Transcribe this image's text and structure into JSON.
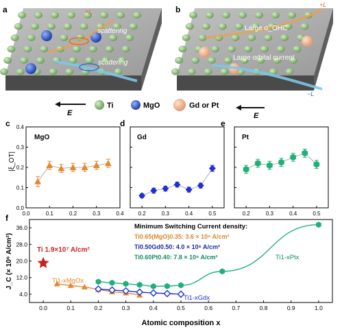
{
  "panels_top": {
    "a": {
      "letter": "a",
      "labels": [
        "scattering",
        "scattering"
      ],
      "arrow_labels": [
        "+L",
        "−L"
      ]
    },
    "b": {
      "letter": "b",
      "labels": [
        "Large σ_OHC",
        "Large orbital current"
      ],
      "arrow_labels": [
        "+L",
        "−L"
      ]
    }
  },
  "legend_top": {
    "e_label": "E",
    "items": [
      {
        "name": "Ti",
        "color": "#8fbe7e"
      },
      {
        "name": "MgO",
        "color": "#2f62c8"
      },
      {
        "name": "Gd or Pt",
        "color": "#f2b48e"
      }
    ]
  },
  "chart_data": [
    {
      "panel": "c",
      "type": "line",
      "inset_label": "MgO",
      "ylabel": "|ξ_OT|",
      "color": "#e8862a",
      "marker": "triangle",
      "xlim": [
        0,
        0.4
      ],
      "ylim": [
        0,
        0.4
      ],
      "xticks": [
        "0.0",
        "0.1",
        "0.2",
        "0.3",
        "0.4"
      ],
      "yticks": [
        "0.0",
        "0.1",
        "0.2",
        "0.3",
        "0.4"
      ],
      "series": [
        {
          "x": [
            0.05,
            0.1,
            0.15,
            0.2,
            0.25,
            0.3,
            0.35
          ],
          "y": [
            0.13,
            0.21,
            0.195,
            0.2,
            0.2,
            0.21,
            0.22
          ],
          "err": [
            0.025,
            0.02,
            0.02,
            0.02,
            0.02,
            0.02,
            0.02
          ]
        }
      ]
    },
    {
      "panel": "d",
      "type": "line",
      "inset_label": "Gd",
      "color": "#1f2fd6",
      "marker": "diamond",
      "xlim": [
        0.15,
        0.55
      ],
      "ylim": [
        0,
        0.4
      ],
      "xticks": [
        "0.2",
        "0.3",
        "0.4",
        "0.5"
      ],
      "series": [
        {
          "x": [
            0.2,
            0.25,
            0.3,
            0.35,
            0.4,
            0.45,
            0.5
          ],
          "y": [
            0.06,
            0.085,
            0.095,
            0.115,
            0.09,
            0.11,
            0.195
          ],
          "err": [
            0.01,
            0.012,
            0.012,
            0.012,
            0.012,
            0.012,
            0.015
          ]
        }
      ]
    },
    {
      "panel": "e",
      "type": "line",
      "inset_label": "Pt",
      "color": "#1fb07a",
      "marker": "hexagon",
      "xlim": [
        0.15,
        0.55
      ],
      "ylim": [
        0,
        0.4
      ],
      "xticks": [
        "0.2",
        "0.3",
        "0.4",
        "0.5"
      ],
      "series": [
        {
          "x": [
            0.2,
            0.25,
            0.3,
            0.35,
            0.4,
            0.45,
            0.5
          ],
          "y": [
            0.19,
            0.22,
            0.21,
            0.225,
            0.25,
            0.27,
            0.215
          ],
          "err": [
            0.02,
            0.02,
            0.02,
            0.02,
            0.02,
            0.02,
            0.02
          ]
        }
      ]
    },
    {
      "panel": "f",
      "type": "scatter",
      "xlabel": "Atomic composition x",
      "ylabel": "J_C (× 10⁶ A/cm²)",
      "xlim": [
        -0.05,
        1.05
      ],
      "ylim": [
        0,
        40
      ],
      "xticks": [
        "0.0",
        "0.1",
        "0.2",
        "0.3",
        "0.4",
        "0.5",
        "0.6",
        "0.7",
        "0.8",
        "0.9",
        "1.0"
      ],
      "yticks": [
        "4.0",
        "12.0",
        "20.0",
        "28.0",
        "36.0"
      ],
      "ti_point": {
        "x": 0.0,
        "y": 19.0,
        "label": "Ti 1.9×10⁷ A/cm²",
        "color": "#cc1f1f"
      },
      "info_title": "Minimum Switching Current density:",
      "info_lines": [
        {
          "text": "Ti0.65(MgO)0.35: 3.6 × 10⁶ A/cm²",
          "color": "#d9872a"
        },
        {
          "text": "Ti0.50Gd0.50: 4.0 × 10⁶ A/cm²",
          "color": "#1a2aa8"
        },
        {
          "text": "Ti0.60Pt0.40: 7.8 × 10⁶ A/cm²",
          "color": "#138a5f"
        }
      ],
      "series": [
        {
          "name": "Ti1-xMgOx",
          "color": "#e8862a",
          "marker": "triangle",
          "x": [
            0.05,
            0.1,
            0.15,
            0.2,
            0.25,
            0.3,
            0.35
          ],
          "y": [
            9.0,
            8.2,
            7.5,
            6.3,
            5.2,
            4.6,
            3.6
          ]
        },
        {
          "name": "Ti1-xGdx",
          "color": "#1f2fd6",
          "marker": "diamond-open",
          "x": [
            0.2,
            0.25,
            0.3,
            0.35,
            0.4,
            0.45,
            0.5
          ],
          "y": [
            6.5,
            6.0,
            5.6,
            5.0,
            4.6,
            4.3,
            4.0
          ]
        },
        {
          "name": "Ti1-xPtx",
          "color": "#1fb07a",
          "marker": "hexagon",
          "x": [
            0.2,
            0.25,
            0.3,
            0.35,
            0.4,
            0.45,
            0.5,
            0.65,
            1.0
          ],
          "y": [
            10.0,
            9.5,
            9.0,
            8.5,
            7.8,
            7.9,
            8.3,
            15.0,
            37.5
          ]
        }
      ]
    }
  ],
  "series_labels_f": {
    "mgo": "Ti1-xMgOx",
    "gd": "Ti1-xGdx",
    "pt": "Ti1-xPtx"
  }
}
